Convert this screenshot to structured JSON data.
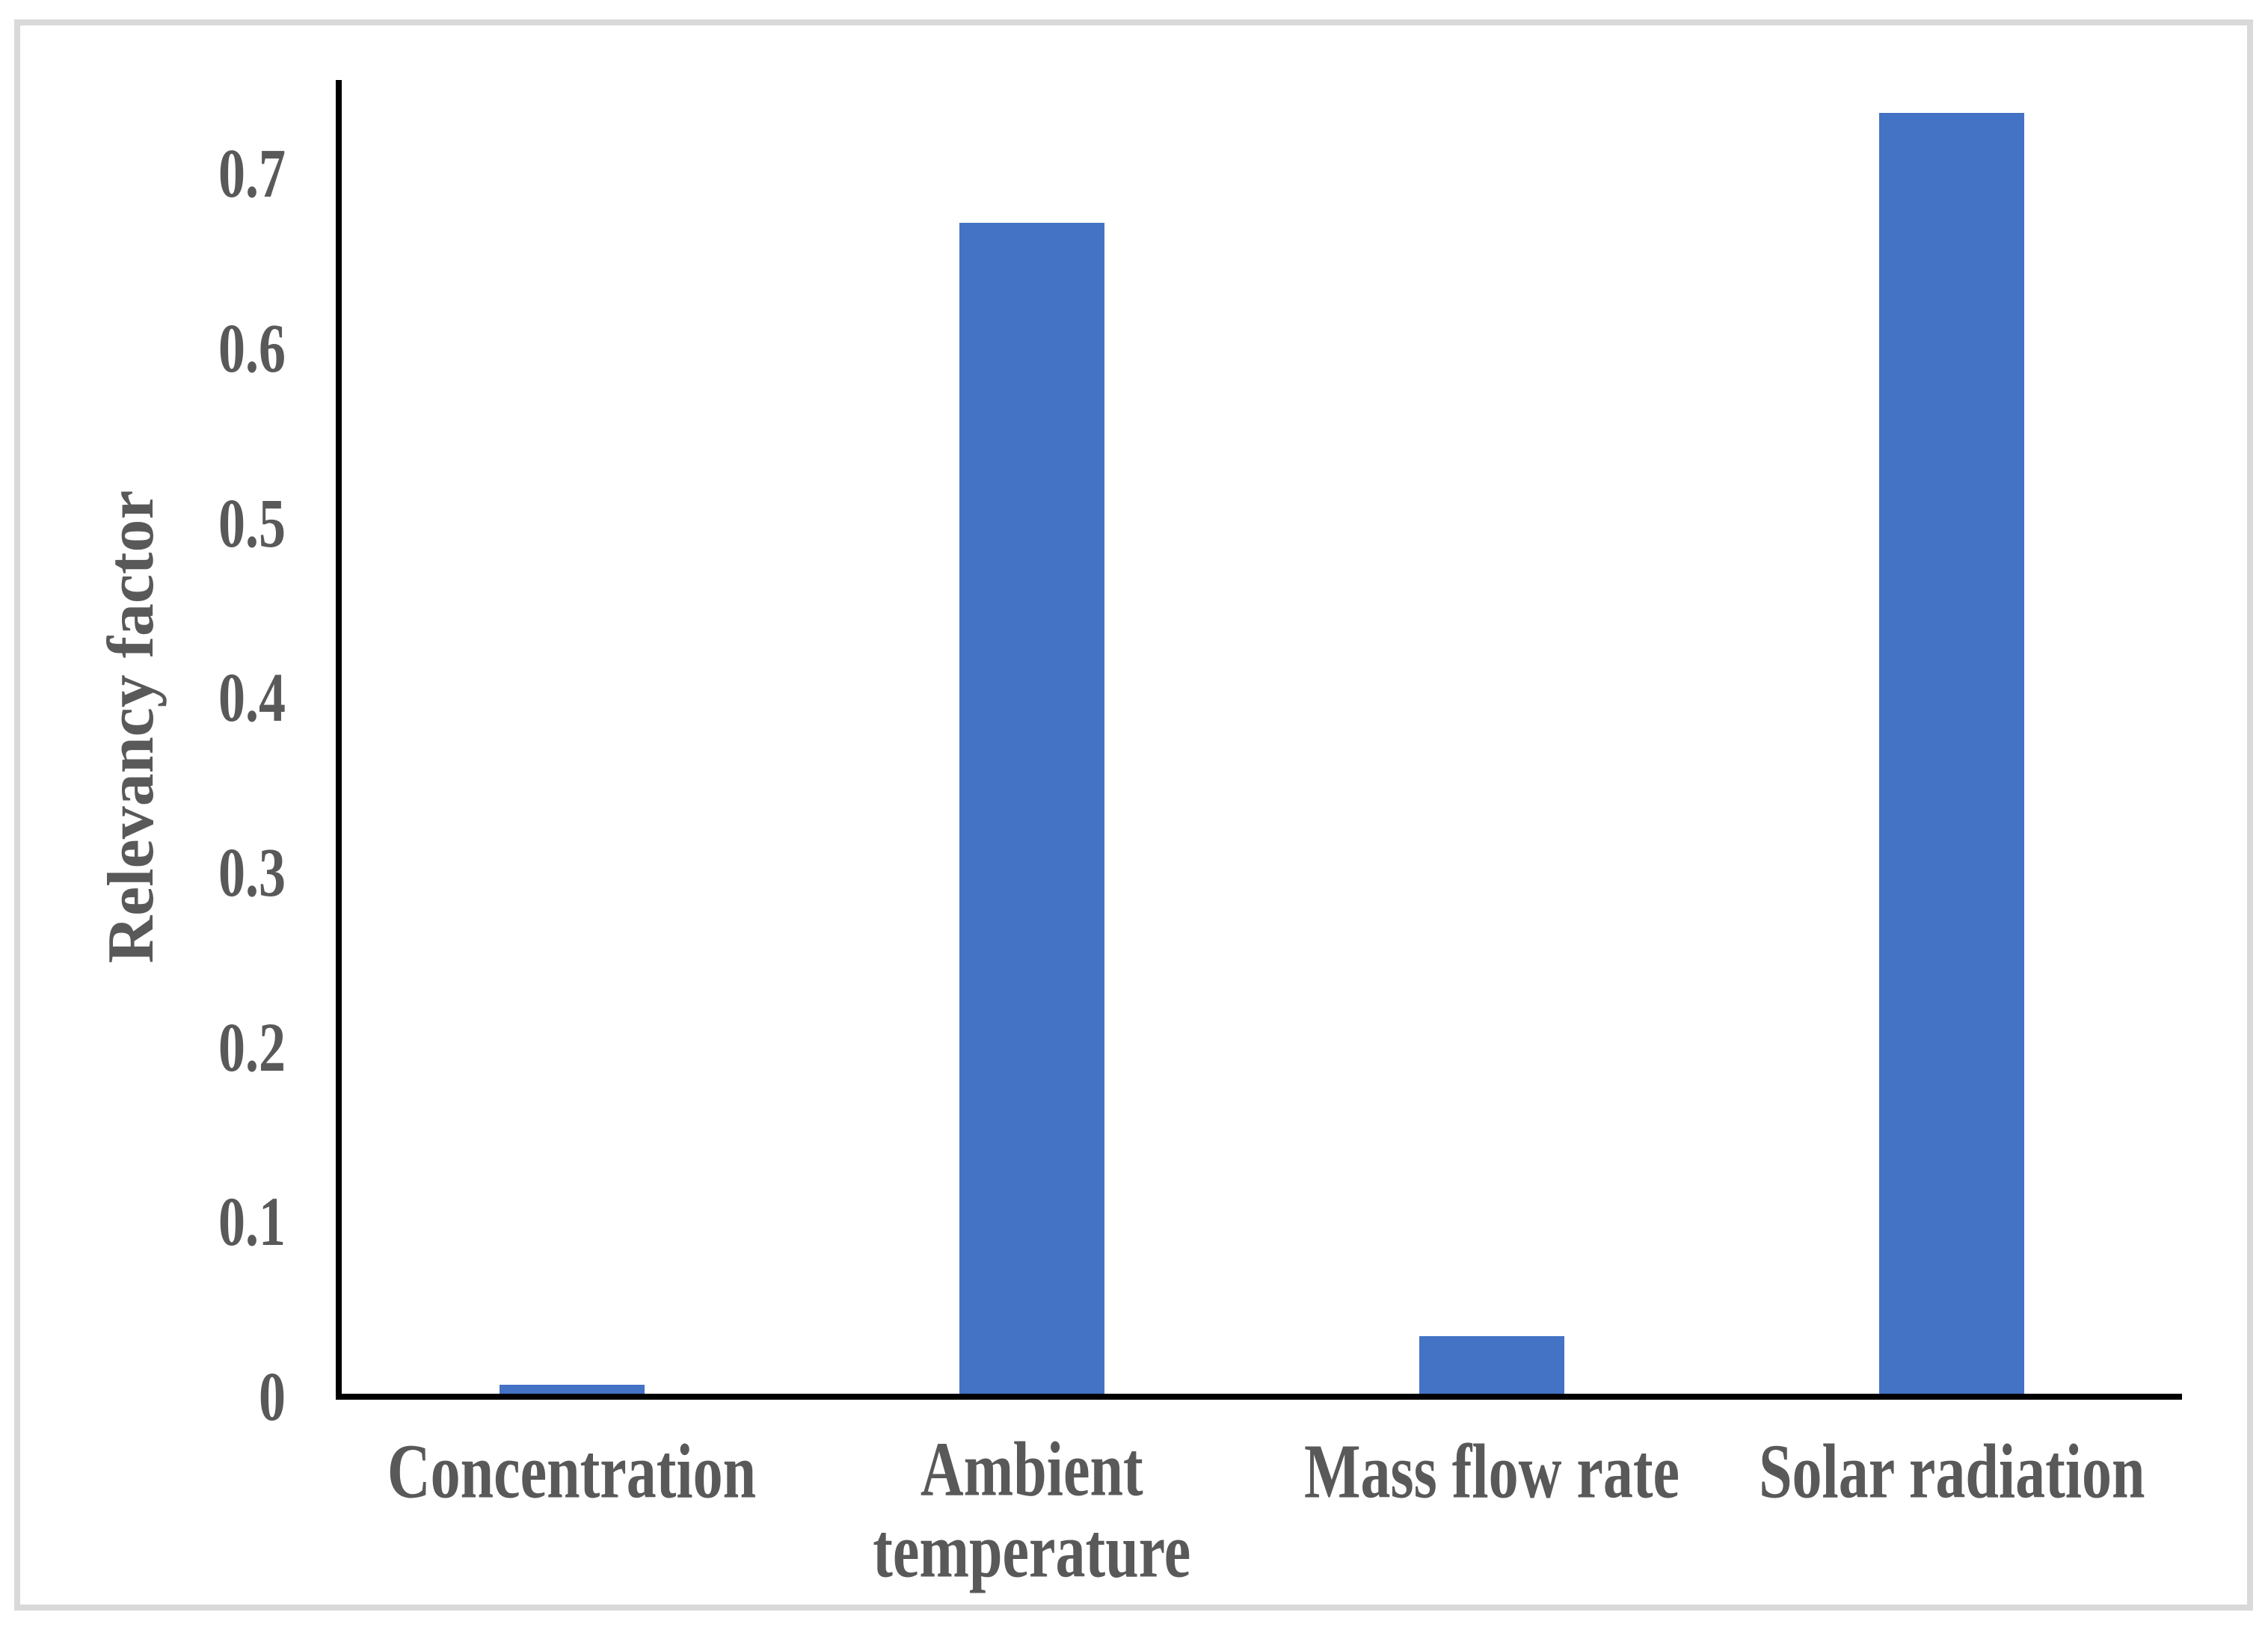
{
  "chart_data": {
    "type": "bar",
    "categories": [
      "Concentration",
      "Ambient temperature",
      "Mass flow rate",
      "Solar radiation"
    ],
    "values": [
      0.005,
      0.67,
      0.033,
      0.733
    ],
    "title": "",
    "xlabel": "",
    "ylabel": "Relevancy factor",
    "ylim": [
      0,
      0.754
    ],
    "yticks": [
      0,
      0.1,
      0.2,
      0.3,
      0.4,
      0.5,
      0.6,
      0.7
    ],
    "ytick_labels": [
      "0",
      "0.1",
      "0.2",
      "0.3",
      "0.4",
      "0.5",
      "0.6",
      "0.7"
    ],
    "grid": false,
    "legend": false,
    "series_name": "Relevancy factor"
  },
  "colors": {
    "bar": "#4472C4",
    "axis": "#000000",
    "text": "#595959",
    "frame": "#D9D9D9",
    "background": "#FFFFFF"
  }
}
